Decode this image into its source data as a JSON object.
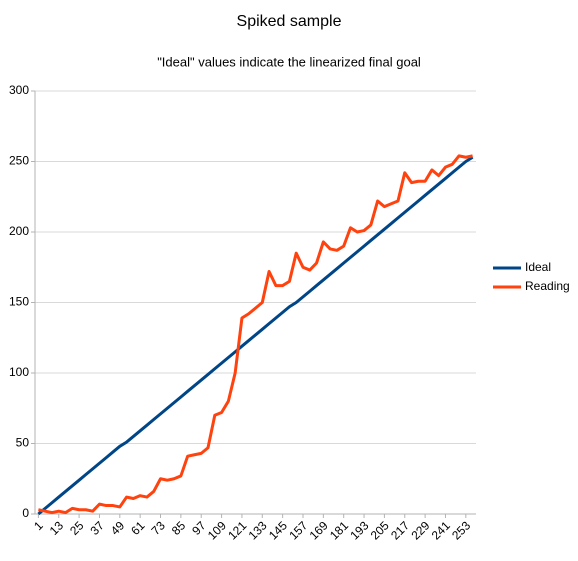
{
  "chart_data": {
    "type": "line",
    "title": "Spiked sample",
    "subtitle": "\"Ideal\" values indicate the linearized final goal",
    "x": [
      1,
      5,
      9,
      13,
      17,
      21,
      25,
      29,
      33,
      37,
      41,
      45,
      49,
      53,
      57,
      61,
      65,
      69,
      73,
      77,
      81,
      85,
      89,
      93,
      97,
      101,
      105,
      109,
      113,
      117,
      121,
      125,
      129,
      133,
      137,
      141,
      145,
      149,
      153,
      157,
      161,
      165,
      169,
      173,
      177,
      181,
      185,
      189,
      193,
      197,
      201,
      205,
      209,
      213,
      217,
      221,
      225,
      229,
      233,
      237,
      241,
      245,
      249,
      253,
      257
    ],
    "series": [
      {
        "name": "Ideal",
        "color": "#004586",
        "values": [
          0,
          4,
          8,
          12,
          16,
          20,
          24,
          28,
          32,
          36,
          40,
          44,
          48,
          51,
          55,
          59,
          63,
          67,
          71,
          75,
          79,
          83,
          87,
          91,
          95,
          99,
          103,
          107,
          111,
          115,
          119,
          123,
          127,
          131,
          135,
          139,
          143,
          147,
          150,
          154,
          158,
          162,
          166,
          170,
          174,
          178,
          182,
          186,
          190,
          194,
          198,
          202,
          206,
          210,
          214,
          218,
          222,
          226,
          230,
          234,
          238,
          242,
          246,
          250,
          253
        ]
      },
      {
        "name": "Reading",
        "color": "#ff420e",
        "values": [
          3,
          2,
          1,
          2,
          1,
          4,
          3,
          3,
          2,
          7,
          6,
          6,
          5,
          12,
          11,
          13,
          12,
          16,
          25,
          24,
          25,
          27,
          41,
          42,
          43,
          47,
          70,
          72,
          80,
          100,
          139,
          142,
          146,
          150,
          172,
          162,
          162,
          165,
          185,
          175,
          173,
          178,
          193,
          188,
          187,
          190,
          203,
          200,
          201,
          205,
          222,
          218,
          220,
          222,
          242,
          235,
          236,
          236,
          244,
          240,
          246,
          248,
          254,
          253,
          254
        ]
      }
    ],
    "xlim": [
      -1,
      259
    ],
    "xticks": [
      1,
      13,
      25,
      37,
      49,
      61,
      73,
      85,
      97,
      109,
      121,
      133,
      145,
      157,
      169,
      181,
      193,
      205,
      217,
      229,
      241,
      253
    ],
    "ylim": [
      0,
      300
    ],
    "yticks": [
      0,
      50,
      100,
      150,
      200,
      250,
      300
    ],
    "grid": true,
    "legend": "right"
  }
}
